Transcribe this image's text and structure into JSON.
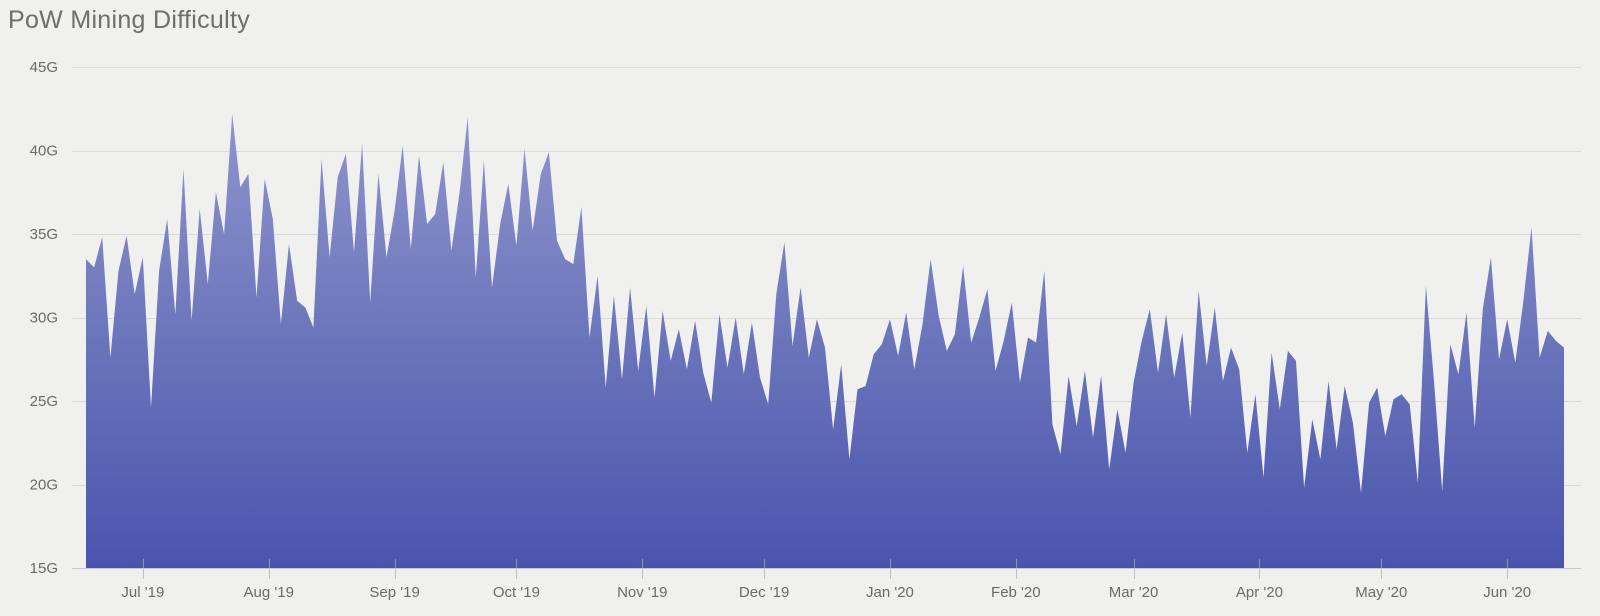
{
  "title": "PoW Mining Difficulty",
  "colors": {
    "background": "#f0f0ee",
    "area_top": "#8f95cc",
    "area_mid": "#6b75bb",
    "area_bottom": "#4a54ad",
    "grid_line": "#dbdbd8",
    "axis_line": "#c7c7c4",
    "tick_mark": "#c2c2bf",
    "axis_label": "#6b6b66",
    "title_text": "#6e6e6e"
  },
  "chart_data": {
    "type": "area",
    "title": "PoW Mining Difficulty",
    "unit": "G",
    "ylabel": "",
    "xlabel": "",
    "ylim": [
      15,
      45
    ],
    "grid": "horizontal",
    "legend": "none",
    "x_span_days": 364,
    "x_start_date": "2019-06-17",
    "day_step": 2,
    "y_ticks": [
      {
        "label": "45G",
        "value": 45
      },
      {
        "label": "40G",
        "value": 40
      },
      {
        "label": "35G",
        "value": 35
      },
      {
        "label": "30G",
        "value": 30
      },
      {
        "label": "25G",
        "value": 25
      },
      {
        "label": "20G",
        "value": 20
      },
      {
        "label": "15G",
        "value": 15
      }
    ],
    "x_ticks": [
      {
        "label": "Jul '19",
        "day": 14
      },
      {
        "label": "Aug '19",
        "day": 45
      },
      {
        "label": "Sep '19",
        "day": 76
      },
      {
        "label": "Oct '19",
        "day": 106
      },
      {
        "label": "Nov '19",
        "day": 137
      },
      {
        "label": "Dec '19",
        "day": 167
      },
      {
        "label": "Jan '20",
        "day": 198
      },
      {
        "label": "Feb '20",
        "day": 229
      },
      {
        "label": "Mar '20",
        "day": 258
      },
      {
        "label": "Apr '20",
        "day": 289
      },
      {
        "label": "May '20",
        "day": 319
      },
      {
        "label": "Jun '20",
        "day": 350
      }
    ],
    "values": [
      33.5,
      33.0,
      34.8,
      27.6,
      32.8,
      34.9,
      31.4,
      33.6,
      24.6,
      32.8,
      35.9,
      30.2,
      38.9,
      29.8,
      36.5,
      32.0,
      37.5,
      35.0,
      42.2,
      37.8,
      38.6,
      31.2,
      38.3,
      35.9,
      29.6,
      34.4,
      31.0,
      30.6,
      29.4,
      39.5,
      33.6,
      38.4,
      39.8,
      33.9,
      40.4,
      30.9,
      38.6,
      33.6,
      36.4,
      40.3,
      34.1,
      39.7,
      35.6,
      36.2,
      39.3,
      34.0,
      37.5,
      42.0,
      32.4,
      39.4,
      31.8,
      35.6,
      38.0,
      34.3,
      40.1,
      35.2,
      38.6,
      39.9,
      34.6,
      33.5,
      33.2,
      36.6,
      28.8,
      32.5,
      25.8,
      31.3,
      26.3,
      31.8,
      26.8,
      30.7,
      25.2,
      30.4,
      27.4,
      29.3,
      26.9,
      29.8,
      26.7,
      24.9,
      30.2,
      27.0,
      30.0,
      26.6,
      29.7,
      26.4,
      24.8,
      31.4,
      34.5,
      28.3,
      31.8,
      27.6,
      29.9,
      28.2,
      23.3,
      27.2,
      21.5,
      25.7,
      25.9,
      27.8,
      28.4,
      29.9,
      27.7,
      30.3,
      26.9,
      29.6,
      33.5,
      30.1,
      28.0,
      29.0,
      33.1,
      28.5,
      30.0,
      31.7,
      26.8,
      28.6,
      30.9,
      26.1,
      28.8,
      28.5,
      32.8,
      23.6,
      21.8,
      26.5,
      23.5,
      26.8,
      22.8,
      26.5,
      20.9,
      24.5,
      21.9,
      26.1,
      28.6,
      30.5,
      26.7,
      30.2,
      26.4,
      29.1,
      24.0,
      31.6,
      27.1,
      30.6,
      26.2,
      28.2,
      26.9,
      21.9,
      25.4,
      20.4,
      27.9,
      24.5,
      28.0,
      27.4,
      19.8,
      23.9,
      21.5,
      26.2,
      22.1,
      25.9,
      23.7,
      19.5,
      24.9,
      25.8,
      22.9,
      25.1,
      25.4,
      24.8,
      20.1,
      31.9,
      26.1,
      19.6,
      28.4,
      26.6,
      30.3,
      23.4,
      30.5,
      33.6,
      27.5,
      29.9,
      27.3,
      31.0,
      35.4,
      27.6,
      29.2,
      28.6,
      28.2
    ]
  }
}
